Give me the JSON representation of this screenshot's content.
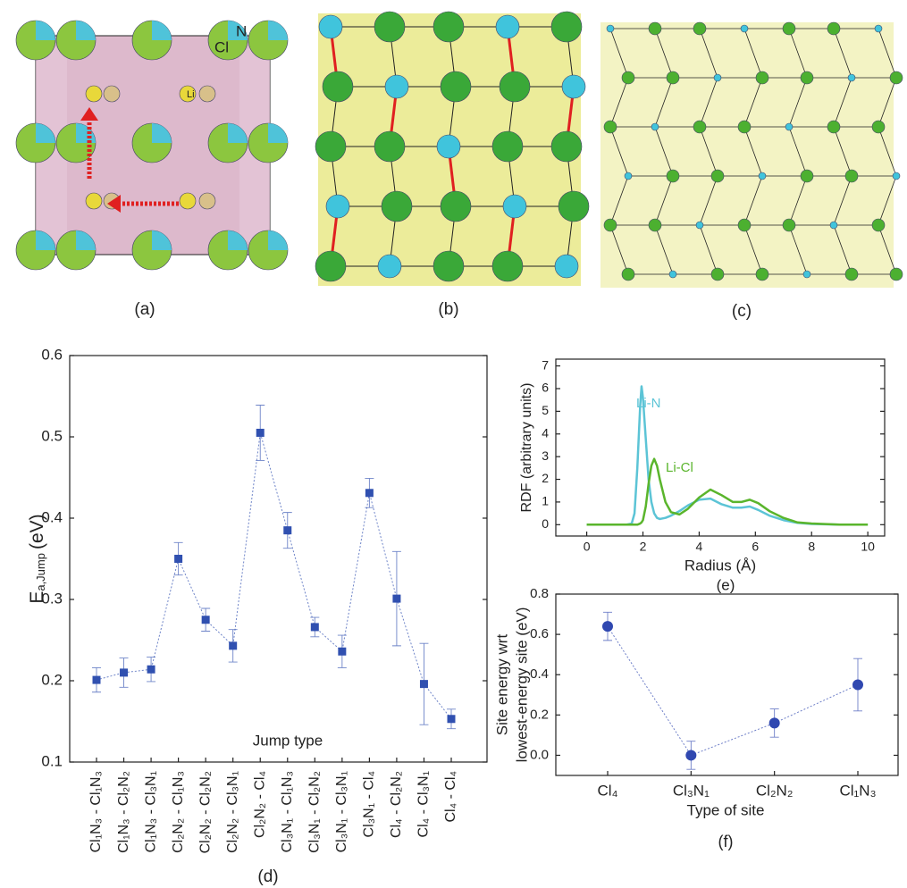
{
  "panels": {
    "a": {
      "label": "(a)",
      "atoms": [
        "Cl",
        "N",
        "Li"
      ]
    },
    "b": {
      "label": "(b)"
    },
    "c": {
      "label": "(c)"
    }
  },
  "chart_data": [
    {
      "type": "scatter",
      "panel_label": "(d)",
      "ylabel": "E",
      "ylabel_sub": "a,Jump",
      "ylabel_unit": "(eV)",
      "annotation": "Jump type",
      "categories": [
        "Cl₁N₃ - Cl₁N₃",
        "Cl₁N₃ - Cl₂N₂",
        "Cl₁N₃ - Cl₃N₁",
        "Cl₂N₂ - Cl₁N₃",
        "Cl₂N₂ - Cl₂N₂",
        "Cl₂N₂ - Cl₃N₁",
        "Cl₂N₂ - Cl₄",
        "Cl₃N₁ - Cl₁N₃",
        "Cl₃N₁ - Cl₂N₂",
        "Cl₃N₁ - Cl₃N₁",
        "Cl₃N₁ - Cl₄",
        "Cl₄ - Cl₂N₂",
        "Cl₄ - Cl₃N₁",
        "Cl₄ - Cl₄"
      ],
      "series": [
        {
          "color": "#3050b0",
          "values": [
            0.201,
            0.21,
            0.214,
            0.35,
            0.275,
            0.243,
            0.505,
            0.385,
            0.266,
            0.236,
            0.431,
            0.301,
            0.196,
            0.153
          ],
          "errors": [
            0.015,
            0.018,
            0.015,
            0.02,
            0.014,
            0.02,
            0.034,
            0.022,
            0.012,
            0.02,
            0.018,
            0.058,
            0.05,
            0.012
          ]
        }
      ],
      "ylim": [
        0.1,
        0.6
      ],
      "yticks": [
        0.1,
        0.2,
        0.3,
        0.4,
        0.5,
        0.6
      ],
      "connect": "dotted"
    },
    {
      "type": "line",
      "panel_label": "(e)",
      "xlabel": "Radius (Å)",
      "ylabel": "RDF (arbitrary units)",
      "x": [
        0,
        1,
        1.4,
        1.6,
        1.7,
        1.8,
        1.9,
        1.95,
        2.0,
        2.1,
        2.2,
        2.3,
        2.4,
        2.5,
        2.6,
        2.8,
        3.0,
        3.3,
        3.6,
        4.0,
        4.4,
        4.8,
        5.2,
        5.5,
        5.8,
        6.1,
        6.5,
        7.0,
        7.5,
        8,
        9,
        10
      ],
      "series": [
        {
          "name": "Li-N",
          "color": "#5cc4d6",
          "values": [
            0,
            0,
            0,
            0.05,
            0.5,
            2.5,
            5.2,
            6.1,
            5.6,
            3.8,
            2.0,
            1.0,
            0.5,
            0.3,
            0.25,
            0.3,
            0.4,
            0.6,
            0.85,
            1.1,
            1.15,
            0.9,
            0.75,
            0.75,
            0.8,
            0.65,
            0.4,
            0.2,
            0.08,
            0.03,
            0,
            0
          ]
        },
        {
          "name": "Li-Cl",
          "color": "#5ab52c",
          "values": [
            0,
            0,
            0,
            0,
            0,
            0,
            0.05,
            0.1,
            0.2,
            0.8,
            1.8,
            2.6,
            2.9,
            2.6,
            2.0,
            1.0,
            0.55,
            0.45,
            0.7,
            1.2,
            1.55,
            1.3,
            1.0,
            1.0,
            1.1,
            0.95,
            0.6,
            0.3,
            0.1,
            0.05,
            0,
            0
          ]
        }
      ],
      "xlim": [
        -1.1,
        10.6
      ],
      "xticks": [
        0,
        2,
        4,
        6,
        8,
        10
      ],
      "ylim": [
        -0.5,
        7.3
      ],
      "yticks": [
        0,
        1,
        2,
        3,
        4,
        5,
        6,
        7
      ]
    },
    {
      "type": "scatter",
      "panel_label": "(f)",
      "xlabel": "Type of site",
      "ylabel": [
        "Site energy wrt",
        "lowest-energy site (eV)"
      ],
      "categories": [
        "Cl₄",
        "Cl₃N₁",
        "Cl₂N₂",
        "Cl₁N₃"
      ],
      "series": [
        {
          "color": "#3048b0",
          "values": [
            0.64,
            0.0,
            0.16,
            0.35
          ],
          "errors": [
            0.07,
            0.07,
            0.07,
            0.13
          ]
        }
      ],
      "ylim": [
        -0.1,
        0.8
      ],
      "yticks": [
        {
          "value": 0,
          "label": "0.0"
        },
        0.2,
        0.4,
        0.6,
        0.8
      ],
      "connect": "dotted"
    }
  ]
}
